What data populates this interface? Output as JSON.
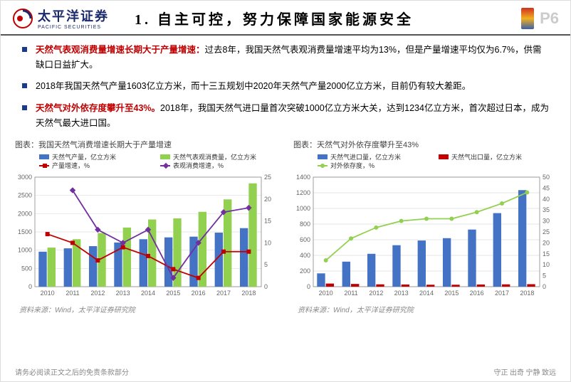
{
  "header": {
    "logo_cn": "太平洋证券",
    "logo_en": "PACIFIC SECURITIES",
    "title": "1.  自主可控，努力保障国家能源安全",
    "page": "P6"
  },
  "bullets": [
    {
      "red": "天然气表观消费量增速长期大于产量增速：",
      "black": "过去8年，我国天然气表观消费量增速平均为13%，但是产量增速平均仅为6.7%，供需缺口日益扩大。"
    },
    {
      "red": "",
      "black": "2018年我国天然气产量1603亿立方米，而十三五规划中2020年天然气产量2000亿立方米，目前仍有较大差距。"
    },
    {
      "red": "天然气对外依存度攀升至43%。",
      "black": "2018年，我国天然气进口量首次突破1000亿立方米大关，达到1234亿立方米，首次超过日本，成为天然气最大进口国。"
    }
  ],
  "chart1": {
    "title": "图表：我国天然气消费增速长期大于产量增速",
    "type": "bar+line",
    "categories": [
      "2010",
      "2011",
      "2012",
      "2013",
      "2014",
      "2015",
      "2016",
      "2017",
      "2018"
    ],
    "series": [
      {
        "name": "天然气产量，亿立方米",
        "type": "bar",
        "data": [
          958,
          1050,
          1110,
          1210,
          1300,
          1350,
          1370,
          1480,
          1603
        ],
        "color": "#4472c4"
      },
      {
        "name": "天然气表观消费量，亿立方米",
        "type": "bar",
        "data": [
          1070,
          1300,
          1470,
          1620,
          1840,
          1870,
          2050,
          2390,
          2830
        ],
        "color": "#92d050"
      },
      {
        "name": "产量增速，%",
        "type": "line",
        "data": [
          12,
          10,
          6,
          9,
          7,
          4,
          2,
          8,
          8
        ],
        "color": "#c00000",
        "marker": "square"
      },
      {
        "name": "表观消费增速，%",
        "type": "line",
        "data": [
          null,
          22,
          13,
          10,
          13,
          2,
          10,
          17,
          18
        ],
        "color": "#7030a0",
        "marker": "diamond"
      }
    ],
    "yleft": {
      "min": 0,
      "max": 3000,
      "step": 500
    },
    "yright": {
      "min": 0,
      "max": 25,
      "step": 5
    },
    "source": "资料来源：Wind，太平洋证券研究院"
  },
  "chart2": {
    "title": "图表：天然气对外依存度攀升至43%",
    "type": "bar+line",
    "categories": [
      "2010",
      "2011",
      "2012",
      "2013",
      "2014",
      "2015",
      "2016",
      "2017",
      "2018"
    ],
    "series": [
      {
        "name": "天然气进口量，亿立方米",
        "type": "bar",
        "data": [
          170,
          320,
          420,
          530,
          590,
          620,
          730,
          940,
          1234
        ],
        "color": "#4472c4"
      },
      {
        "name": "天然气出口量，亿立方米",
        "type": "bar",
        "data": [
          40,
          35,
          30,
          28,
          25,
          25,
          28,
          30,
          32
        ],
        "color": "#c00000"
      },
      {
        "name": "对外依存度，%",
        "type": "line",
        "data": [
          12,
          22,
          27,
          30,
          31,
          31,
          34,
          38,
          43
        ],
        "color": "#92d050",
        "marker": "circle"
      }
    ],
    "yleft": {
      "min": 0,
      "max": 1400,
      "step": 200
    },
    "yright": {
      "min": 0,
      "max": 50,
      "step": 5
    },
    "source": "资料来源：Wind，太平洋证券研究院"
  },
  "footer": {
    "left": "请务必阅读正文之后的免责条款部分",
    "right": "守正  出奇  宁静  致远"
  }
}
